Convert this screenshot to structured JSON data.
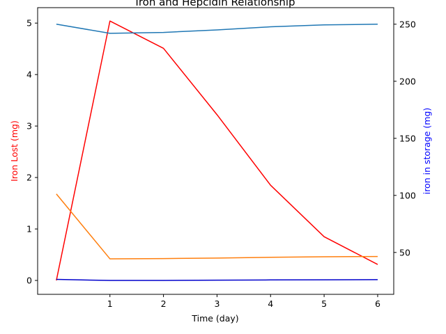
{
  "chart_data": {
    "type": "line",
    "title": "Iron and Hepcidin Relationship",
    "xlabel": "Time (day)",
    "ylabel_left": "Iron Lost (mg)",
    "ylabel_right": "iron in storage (mg)",
    "xlim": [
      -0.35,
      6.3
    ],
    "ylim_left": [
      -0.27,
      5.3
    ],
    "ylim_right": [
      13.3,
      264.5
    ],
    "x_ticks": [
      1,
      2,
      3,
      4,
      5,
      6
    ],
    "y_left_ticks": [
      0,
      1,
      2,
      3,
      4,
      5
    ],
    "y_right_ticks": [
      50,
      100,
      150,
      200,
      250
    ],
    "grid": false,
    "colors": {
      "left_label": "#ff0000",
      "right_label": "#0000ff"
    },
    "series": [
      {
        "axis": "left",
        "color": "#ff0000",
        "x": [
          0,
          1,
          2,
          3,
          4,
          5,
          6
        ],
        "y": [
          0.0,
          5.04,
          4.51,
          3.22,
          1.85,
          0.85,
          0.31
        ]
      },
      {
        "axis": "left",
        "color": "#ff7f0e",
        "x": [
          0,
          1,
          2,
          3,
          4,
          5,
          6
        ],
        "y": [
          1.68,
          0.42,
          0.425,
          0.435,
          0.45,
          0.46,
          0.465
        ]
      },
      {
        "axis": "left",
        "color": "#0000cc",
        "x": [
          0,
          1,
          2,
          3,
          4,
          5,
          6
        ],
        "y": [
          0.02,
          0.0,
          0.0,
          0.005,
          0.01,
          0.013,
          0.015
        ]
      },
      {
        "axis": "right",
        "color": "#1f77b4",
        "x": [
          0,
          1,
          2,
          3,
          4,
          5,
          6
        ],
        "y": [
          250,
          242,
          242.8,
          245,
          247.7,
          249.4,
          250
        ]
      }
    ]
  }
}
